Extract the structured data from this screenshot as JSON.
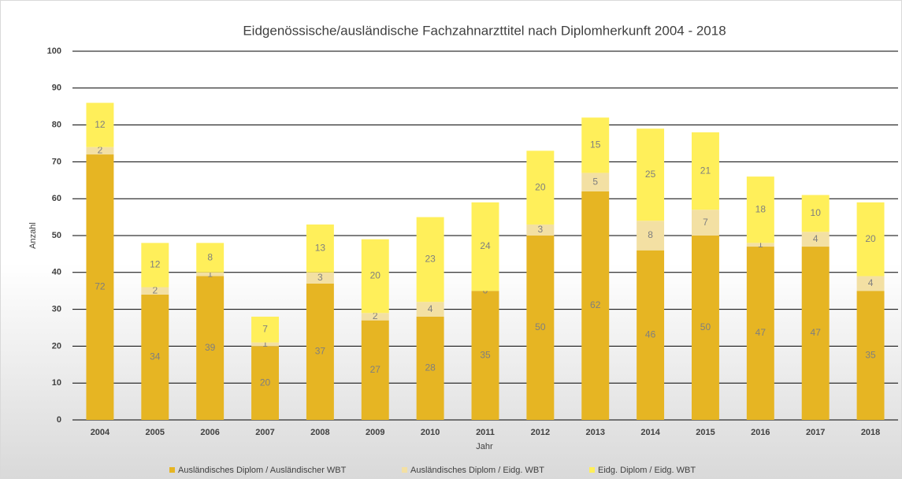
{
  "chart_data": {
    "type": "stacked_bar",
    "title": "Eidgenössische/ausländische Fachzahnarzttitel nach Diplomherkunft 2004 - 2018",
    "x_label": "Jahr",
    "y_label": "Anzahl",
    "categories": [
      "2004",
      "2005",
      "2006",
      "2007",
      "2008",
      "2009",
      "2010",
      "2011",
      "2012",
      "2013",
      "2014",
      "2015",
      "2016",
      "2017",
      "2018"
    ],
    "series": [
      {
        "name": "Ausländisches Diplom / Ausländischer WBT",
        "color": "#e6b523",
        "values": [
          72,
          34,
          39,
          20,
          37,
          27,
          28,
          35,
          50,
          62,
          46,
          50,
          47,
          47,
          35
        ]
      },
      {
        "name": "Ausländisches Diplom / Eidg. WBT",
        "color": "#f3e0a3",
        "values": [
          2,
          2,
          1,
          1,
          3,
          2,
          4,
          0,
          3,
          5,
          8,
          7,
          1,
          4,
          4
        ]
      },
      {
        "name": "Eidg. Diplom / Eidg. WBT",
        "color": "#ffef5a",
        "values": [
          12,
          12,
          8,
          7,
          13,
          20,
          23,
          24,
          20,
          15,
          25,
          21,
          18,
          10,
          20
        ]
      }
    ],
    "ylim": [
      0,
      100
    ],
    "yticks": [
      0,
      10,
      20,
      30,
      40,
      50,
      60,
      70,
      80,
      90,
      100
    ],
    "grid": true,
    "legend": "bottom"
  }
}
